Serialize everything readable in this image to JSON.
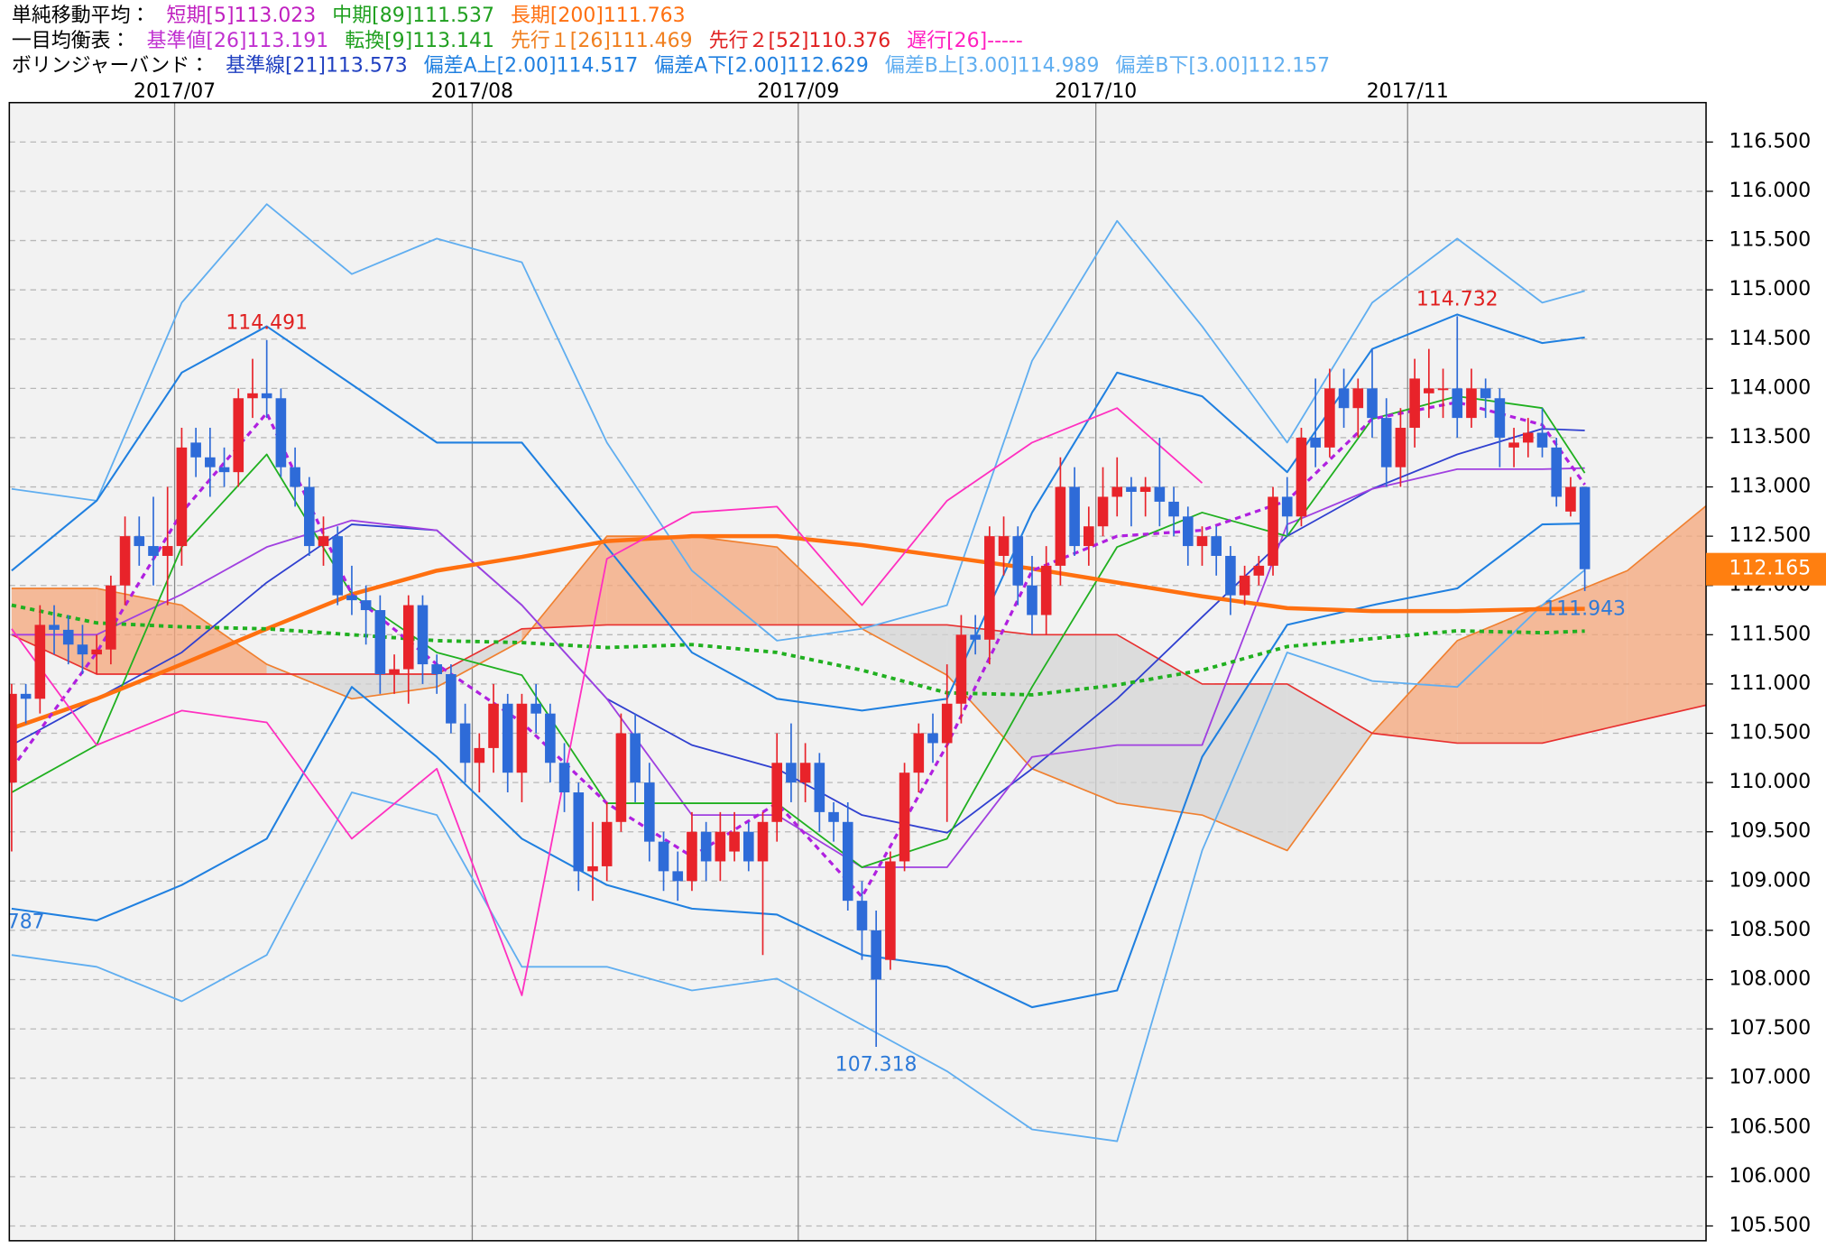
{
  "chart_data": {
    "type": "candlestick",
    "legend": [
      [
        {
          "text": "単純移動平均：",
          "color": "#000000"
        },
        {
          "text": "短期[5]113.023",
          "color": "#c020c0"
        },
        {
          "text": "中期[89]111.537",
          "color": "#20a020"
        },
        {
          "text": "長期[200]111.763",
          "color": "#ff7010"
        }
      ],
      [
        {
          "text": "一目均衡表：",
          "color": "#000000"
        },
        {
          "text": "基準値[26]113.191",
          "color": "#c030d0"
        },
        {
          "text": "転換[9]113.141",
          "color": "#20a020"
        },
        {
          "text": "先行１[26]111.469",
          "color": "#f08020"
        },
        {
          "text": "先行２[52]110.376",
          "color": "#e02020"
        },
        {
          "text": "遅行[26]-----",
          "color": "#ff20c0"
        }
      ],
      [
        {
          "text": "ボリンジャーバンド：",
          "color": "#000000"
        },
        {
          "text": "基準線[21]113.573",
          "color": "#2040c0"
        },
        {
          "text": "偏差A上[2.00]114.517",
          "color": "#2080e0"
        },
        {
          "text": "偏差A下[2.00]112.629",
          "color": "#2080e0"
        },
        {
          "text": "偏差B上[3.00]114.989",
          "color": "#60aef0"
        },
        {
          "text": "偏差B下[3.00]112.157",
          "color": "#60aef0"
        }
      ]
    ],
    "categories": [
      null,
      null,
      null,
      null,
      null,
      null,
      null,
      null,
      null,
      null,
      null,
      null,
      "2017/07",
      null,
      null,
      null,
      null,
      null,
      null,
      null,
      null,
      null,
      null,
      null,
      null,
      null,
      null,
      null,
      null,
      null,
      null,
      null,
      null,
      "2017/08",
      null,
      null,
      null,
      null,
      null,
      null,
      null,
      null,
      null,
      null,
      null,
      null,
      null,
      null,
      null,
      null,
      null,
      null,
      null,
      null,
      null,
      null,
      "2017/09",
      null,
      null,
      null,
      null,
      null,
      null,
      null,
      null,
      null,
      null,
      null,
      null,
      null,
      null,
      null,
      null,
      null,
      null,
      null,
      null,
      "2017/10",
      null,
      null,
      null,
      null,
      null,
      null,
      null,
      null,
      null,
      null,
      null,
      null,
      null,
      null,
      null,
      null,
      null,
      null,
      null,
      null,
      null,
      "2017/11",
      null,
      null,
      null,
      null,
      null,
      null,
      null,
      null,
      null,
      null,
      null,
      null
    ],
    "open": [
      110.0,
      110.9,
      110.85,
      111.6,
      111.55,
      111.4,
      111.3,
      111.35,
      112.0,
      112.5,
      112.4,
      112.3,
      112.4,
      113.45,
      113.3,
      113.2,
      113.15,
      113.9,
      113.95,
      113.9,
      113.2,
      113.0,
      112.4,
      112.5,
      111.9,
      111.85,
      111.75,
      111.1,
      111.15,
      111.8,
      111.2,
      111.1,
      110.6,
      110.2,
      110.35,
      110.8,
      110.1,
      110.8,
      110.7,
      110.2,
      109.9,
      109.1,
      109.15,
      109.6,
      110.5,
      110.0,
      109.4,
      109.1,
      109.0,
      109.5,
      109.2,
      109.3,
      109.5,
      109.2,
      109.6,
      110.2,
      110.0,
      110.2,
      109.7,
      109.6,
      108.8,
      108.5,
      108.2,
      109.2,
      110.1,
      110.5,
      110.4,
      110.8,
      111.5,
      111.45,
      112.3,
      112.5,
      112.0,
      111.7,
      112.2,
      113.0,
      112.4,
      112.6,
      112.9,
      113.0,
      112.95,
      113.0,
      112.85,
      112.7,
      112.4,
      112.5,
      112.3,
      111.9,
      112.1,
      112.2,
      112.9,
      112.7,
      113.5,
      113.4,
      114.0,
      113.8,
      114.0,
      113.7,
      113.2,
      113.6,
      113.95,
      114.0,
      114.0,
      113.7,
      114.0,
      113.9,
      113.4,
      113.45,
      113.55,
      113.4,
      112.75,
      113.0
    ],
    "high": [
      111.0,
      111.0,
      111.8,
      111.8,
      111.7,
      111.6,
      111.5,
      112.1,
      112.7,
      112.7,
      112.9,
      113.0,
      113.6,
      113.6,
      113.6,
      113.4,
      114.0,
      114.3,
      114.491,
      114.0,
      113.4,
      113.1,
      112.7,
      112.6,
      112.2,
      112.0,
      111.9,
      111.3,
      111.9,
      111.9,
      111.3,
      111.2,
      110.8,
      110.5,
      111.0,
      110.9,
      110.9,
      111.0,
      110.8,
      110.4,
      110.0,
      109.6,
      109.8,
      110.7,
      110.7,
      110.2,
      109.5,
      109.3,
      109.7,
      109.6,
      109.7,
      109.7,
      109.6,
      109.7,
      110.5,
      110.6,
      110.4,
      110.3,
      109.8,
      109.8,
      109.0,
      108.7,
      109.3,
      110.2,
      110.6,
      110.7,
      111.2,
      111.7,
      111.7,
      112.6,
      112.7,
      112.6,
      112.3,
      112.4,
      113.3,
      113.2,
      112.8,
      113.2,
      113.3,
      113.1,
      113.1,
      113.5,
      113.0,
      112.8,
      112.6,
      112.6,
      112.4,
      112.2,
      112.3,
      113.0,
      113.1,
      113.6,
      114.1,
      114.2,
      114.2,
      114.1,
      114.4,
      113.9,
      113.8,
      114.3,
      114.4,
      114.2,
      114.732,
      114.2,
      114.1,
      114.0,
      113.6,
      113.7,
      113.8,
      113.5,
      113.1,
      113.0
    ],
    "low": [
      109.3,
      110.6,
      110.7,
      111.3,
      111.2,
      111.1,
      111.1,
      111.2,
      111.8,
      112.2,
      112.0,
      111.8,
      112.2,
      113.1,
      112.9,
      113.0,
      113.0,
      113.7,
      113.7,
      113.1,
      112.8,
      112.3,
      112.2,
      111.8,
      111.7,
      111.4,
      110.9,
      110.9,
      110.8,
      111.0,
      110.9,
      110.5,
      110.0,
      109.9,
      110.1,
      109.9,
      109.8,
      110.5,
      110.0,
      109.7,
      108.9,
      108.8,
      109.0,
      109.5,
      109.8,
      109.2,
      108.9,
      108.8,
      108.9,
      109.0,
      109.0,
      109.2,
      109.1,
      108.25,
      109.4,
      109.8,
      109.8,
      109.5,
      109.4,
      108.7,
      108.2,
      107.318,
      108.1,
      109.1,
      109.9,
      110.2,
      109.6,
      110.6,
      111.3,
      111.2,
      112.1,
      111.8,
      111.5,
      111.5,
      112.0,
      112.3,
      112.2,
      112.5,
      112.7,
      112.6,
      112.7,
      112.6,
      112.5,
      112.2,
      112.2,
      112.1,
      111.7,
      111.8,
      112.0,
      112.1,
      112.5,
      112.6,
      113.2,
      113.3,
      113.6,
      113.5,
      113.5,
      113.0,
      113.0,
      113.4,
      113.7,
      113.7,
      113.5,
      113.6,
      113.7,
      113.2,
      113.2,
      113.3,
      113.3,
      112.8,
      112.7,
      111.943
    ],
    "close": [
      110.9,
      110.85,
      111.6,
      111.55,
      111.4,
      111.3,
      111.35,
      112.0,
      112.5,
      112.4,
      112.3,
      112.4,
      113.4,
      113.3,
      113.2,
      113.15,
      113.9,
      113.95,
      113.9,
      113.2,
      113.0,
      112.4,
      112.5,
      111.9,
      111.85,
      111.75,
      111.1,
      111.15,
      111.8,
      111.2,
      111.1,
      110.6,
      110.2,
      110.35,
      110.8,
      110.1,
      110.8,
      110.7,
      110.2,
      109.9,
      109.1,
      109.15,
      109.6,
      110.5,
      110.0,
      109.4,
      109.1,
      109.0,
      109.5,
      109.2,
      109.5,
      109.5,
      109.2,
      109.6,
      110.2,
      110.0,
      110.2,
      109.7,
      109.6,
      108.8,
      108.5,
      108.0,
      109.2,
      110.1,
      110.5,
      110.4,
      110.8,
      111.5,
      111.45,
      112.5,
      112.5,
      112.0,
      111.7,
      112.2,
      113.0,
      112.4,
      112.6,
      112.9,
      113.0,
      112.95,
      113.0,
      112.85,
      112.7,
      112.4,
      112.5,
      112.3,
      111.9,
      112.1,
      112.2,
      112.9,
      112.7,
      113.5,
      113.4,
      114.0,
      113.8,
      114.0,
      113.7,
      113.2,
      113.6,
      114.1,
      114.0,
      114.0,
      113.7,
      114.0,
      113.9,
      113.5,
      113.45,
      113.55,
      113.4,
      112.9,
      113.0,
      112.165
    ],
    "up_color": "#e8232a",
    "down_color": "#2e6bd8",
    "ylim": [
      105.35,
      116.9
    ],
    "yticks": [
      {
        "value": 105.5,
        "label": "105.500"
      },
      {
        "value": 106,
        "label": "106.000"
      },
      {
        "value": 106.5,
        "label": "106.500"
      },
      {
        "value": 107,
        "label": "107.000"
      },
      {
        "value": 107.5,
        "label": "107.500"
      },
      {
        "value": 108,
        "label": "108.000"
      },
      {
        "value": 108.5,
        "label": "108.500"
      },
      {
        "value": 109,
        "label": "109.000"
      },
      {
        "value": 109.5,
        "label": "109.500"
      },
      {
        "value": 110,
        "label": "110.000"
      },
      {
        "value": 110.5,
        "label": "110.500"
      },
      {
        "value": 111,
        "label": "111.000"
      },
      {
        "value": 111.5,
        "label": "111.500"
      },
      {
        "value": 112,
        "label": "112.000"
      },
      {
        "value": 112.5,
        "label": "112.500"
      },
      {
        "value": 113,
        "label": "113.000"
      },
      {
        "value": 113.5,
        "label": "113.500"
      },
      {
        "value": 114,
        "label": "114.000"
      },
      {
        "value": 114.5,
        "label": "114.500"
      },
      {
        "value": 115,
        "label": "115.000"
      },
      {
        "value": 115.5,
        "label": "115.500"
      },
      {
        "value": 116,
        "label": "116.000"
      },
      {
        "value": 116.5,
        "label": "116.500"
      }
    ],
    "grid": true,
    "cloud": {
      "x": [
        0,
        6,
        12,
        18,
        24,
        30,
        36,
        42,
        48,
        54,
        60,
        66,
        72,
        78,
        84,
        90,
        96,
        102,
        108,
        114,
        120
      ],
      "span_a": [
        111.97,
        111.97,
        111.8,
        111.2,
        110.85,
        110.97,
        111.44,
        112.5,
        112.5,
        112.39,
        111.56,
        111.09,
        110.14,
        109.79,
        109.67,
        109.31,
        110.5,
        111.44,
        111.8,
        112.15,
        112.86
      ],
      "span_b": [
        111.5,
        111.1,
        111.1,
        111.1,
        111.1,
        111.1,
        111.56,
        111.6,
        111.6,
        111.6,
        111.6,
        111.6,
        111.5,
        111.5,
        111.0,
        111.0,
        110.5,
        110.4,
        110.4,
        110.6,
        110.8
      ],
      "span_a_color": "#f08030",
      "span_b_color": "#e83030",
      "up_fill": "#f4a679",
      "down_fill": "#d4d4d4"
    },
    "lagging": {
      "x": [
        0,
        6,
        12,
        18,
        24,
        30,
        36,
        42,
        48,
        54,
        60,
        66,
        72,
        78,
        84
      ],
      "values": [
        111.56,
        110.38,
        110.73,
        110.61,
        109.43,
        110.14,
        107.84,
        112.27,
        112.74,
        112.8,
        111.8,
        112.86,
        113.45,
        113.8,
        113.04
      ],
      "color": "#ff30c0"
    },
    "overlay_x": [
      0,
      6,
      12,
      18,
      24,
      30,
      36,
      42,
      48,
      54,
      60,
      66,
      72,
      78,
      84,
      90,
      96,
      102,
      108,
      111
    ],
    "overlays": [
      {
        "values": [
          108.25,
          108.13,
          107.78,
          108.25,
          109.9,
          109.67,
          108.13,
          108.13,
          107.89,
          108.01,
          107.54,
          107.07,
          106.48,
          106.36,
          109.31,
          111.32,
          111.03,
          110.97,
          111.8,
          112.157
        ],
        "color": "#60aef0",
        "width": 1.4
      },
      {
        "values": [
          112.98,
          112.86,
          114.87,
          115.87,
          115.16,
          115.52,
          115.28,
          113.45,
          112.15,
          111.44,
          111.56,
          111.8,
          114.28,
          115.7,
          114.63,
          113.45,
          114.87,
          115.52,
          114.87,
          114.989
        ],
        "color": "#60aef0",
        "width": 1.4
      },
      {
        "values": [
          108.72,
          108.6,
          108.96,
          109.43,
          110.97,
          110.26,
          109.43,
          108.96,
          108.72,
          108.66,
          108.25,
          108.13,
          107.72,
          107.89,
          110.26,
          111.6,
          111.8,
          111.97,
          112.62,
          112.629
        ],
        "color": "#2080e0",
        "width": 1.6
      },
      {
        "values": [
          112.15,
          112.86,
          114.16,
          114.63,
          114.04,
          113.45,
          113.45,
          112.39,
          111.32,
          110.85,
          110.73,
          110.85,
          112.74,
          114.16,
          113.92,
          113.15,
          114.4,
          114.75,
          114.46,
          114.517
        ],
        "color": "#2080e0",
        "width": 1.6
      },
      {
        "values": [
          110.38,
          110.85,
          111.32,
          112.03,
          112.62,
          112.56,
          111.8,
          110.85,
          110.38,
          110.14,
          109.67,
          109.49,
          110.14,
          110.85,
          111.68,
          112.5,
          112.98,
          113.33,
          113.59,
          113.573
        ],
        "color": "#3040d0",
        "width": 1.4
      },
      {
        "values": [
          111.5,
          111.5,
          111.91,
          112.39,
          112.66,
          112.56,
          111.8,
          110.85,
          109.67,
          109.67,
          109.14,
          109.14,
          110.26,
          110.38,
          110.38,
          112.62,
          112.98,
          113.18,
          113.18,
          113.191
        ],
        "color": "#a040e0",
        "width": 1.4
      },
      {
        "values": [
          109.9,
          110.38,
          112.39,
          113.33,
          111.91,
          111.32,
          111.09,
          109.79,
          109.79,
          109.79,
          109.14,
          109.43,
          110.97,
          112.39,
          112.74,
          112.5,
          113.69,
          113.92,
          113.8,
          113.141
        ],
        "color": "#20b020",
        "width": 1.4
      },
      {
        "values": [
          110.55,
          110.85,
          111.2,
          111.56,
          111.91,
          112.15,
          112.29,
          112.45,
          112.5,
          112.5,
          112.41,
          112.29,
          112.17,
          112.03,
          111.89,
          111.77,
          111.74,
          111.74,
          111.76,
          111.763
        ],
        "color": "#ff7010",
        "width": 3.5
      },
      {
        "values": [
          111.8,
          111.62,
          111.58,
          111.56,
          111.5,
          111.44,
          111.42,
          111.37,
          111.4,
          111.32,
          111.14,
          110.91,
          110.89,
          110.99,
          111.14,
          111.38,
          111.46,
          111.54,
          111.52,
          111.537
        ],
        "color": "#20b020",
        "width": 3,
        "dash": "4 4"
      },
      {
        "values": [
          110.14,
          111.32,
          112.74,
          113.75,
          111.91,
          111.2,
          110.61,
          109.79,
          109.25,
          109.79,
          108.84,
          110.38,
          112.15,
          112.5,
          112.56,
          112.86,
          113.69,
          113.86,
          113.63,
          113.023
        ],
        "color": "#b020e0",
        "width": 2.5,
        "dash": "5 4"
      }
    ],
    "annotations": [
      {
        "value": 114.491,
        "label": "114.491",
        "color": "#e02020"
      },
      {
        "value": 107.318,
        "label": "107.318",
        "color": "#2e7ad8"
      },
      {
        "value": 114.732,
        "label": "114.732",
        "color": "#e02020"
      },
      {
        "value": 111.943,
        "label": "111.943",
        "color": "#2e7ad8"
      },
      {
        "label": "787",
        "color": "#2e7ad8"
      }
    ],
    "last_price": {
      "value": 112.165,
      "label": "112.165",
      "color": "#ff7f10"
    }
  }
}
